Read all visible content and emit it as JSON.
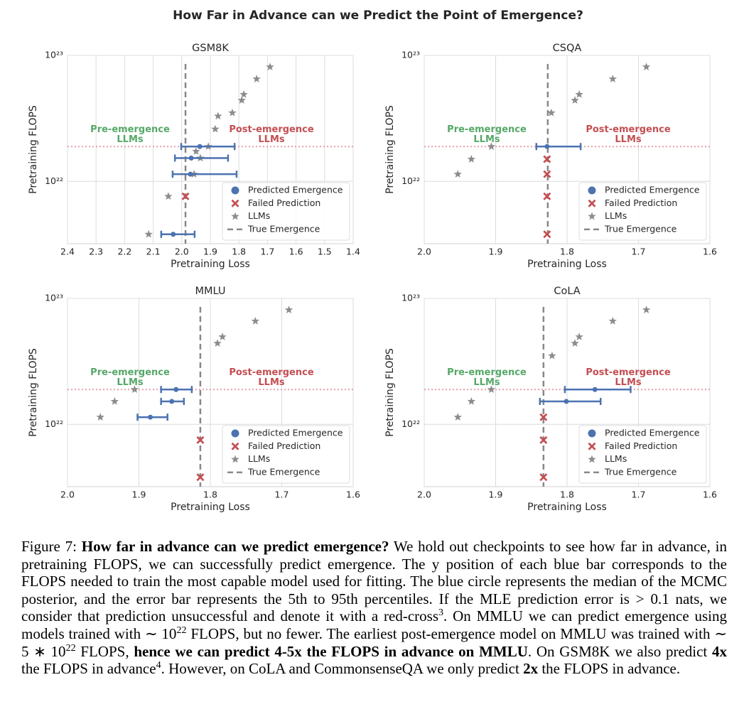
{
  "title": "How Far in Advance can we Predict the Point of Emergence?",
  "chart_data": [
    {
      "type": "scatter",
      "title": "GSM8K",
      "x_label": "Pretraining Loss",
      "y_label": "Pretraining FLOPS",
      "log_y": true,
      "grid": true,
      "xlim": [
        2.4,
        1.4
      ],
      "xticks": [
        2.4,
        2.3,
        2.2,
        2.1,
        {
          "value": 2,
          "label": "2.0"
        },
        1.9,
        1.8,
        1.7,
        1.6,
        1.5,
        1.4
      ],
      "ylim": [
        3.2e+21,
        1e+23
      ],
      "yticks": [
        {
          "value": 1e+22,
          "label": "10²²"
        },
        {
          "value": 1e+23,
          "label": "10²³"
        }
      ],
      "annotations": {
        "pre": [
          "Pre-emergence",
          "LLMs"
        ],
        "post": [
          "Post-emergence",
          "LLMs"
        ]
      },
      "threshold": 1.89e+22,
      "predicted": {
        "name": "Predicted Emergence",
        "color": "#4c72b0",
        "x": [
          2.03,
          1.97,
          1.967,
          1.937
        ],
        "x_low": [
          2.072,
          2.032,
          2.024,
          2.002
        ],
        "x_high": [
          1.955,
          1.808,
          1.838,
          1.815
        ],
        "y": [
          3.8e+21,
          1.14e+22,
          1.53e+22,
          1.89e+22
        ]
      },
      "failed": {
        "name": "Failed Prediction",
        "color": "#c44e52",
        "x": [
          1.987
        ],
        "y": [
          7.6e+21
        ]
      },
      "llms": {
        "name": "LLMs",
        "color": "#8c8c8c",
        "x": [
          2.116,
          2.047,
          1.957,
          1.935,
          1.95,
          1.907,
          1.883,
          1.873,
          1.823,
          1.79,
          1.783,
          1.738,
          1.691
        ],
        "y": [
          3.8e+21,
          7.6e+21,
          1.14e+22,
          1.53e+22,
          1.73e+22,
          1.89e+22,
          2.6e+22,
          3.3e+22,
          3.5e+22,
          4.4e+22,
          4.9e+22,
          6.5e+22,
          8.1e+22
        ]
      },
      "true_emergence": {
        "name": "True Emergence",
        "x": 1.987
      }
    },
    {
      "type": "scatter",
      "title": "CSQA",
      "x_label": "Pretraining Loss",
      "y_label": "Pretraining FLOPS",
      "log_y": true,
      "grid": true,
      "xlim": [
        2.0,
        1.6
      ],
      "xticks": [
        {
          "value": 2,
          "label": "2.0"
        },
        1.9,
        1.8,
        1.7,
        1.6
      ],
      "ylim": [
        3.2e+21,
        1e+23
      ],
      "yticks": [
        {
          "value": 1e+22,
          "label": "10²²"
        },
        {
          "value": 1e+23,
          "label": "10²³"
        }
      ],
      "annotations": {
        "pre": [
          "Pre-emergence",
          "LLMs"
        ],
        "post": [
          "Post-emergence",
          "LLMs"
        ]
      },
      "threshold": 1.89e+22,
      "predicted": {
        "name": "Predicted Emergence",
        "color": "#4c72b0",
        "x": [
          1.828
        ],
        "x_low": [
          1.843
        ],
        "x_high": [
          1.781
        ],
        "y": [
          1.89e+22
        ]
      },
      "failed": {
        "name": "Failed Prediction",
        "color": "#c44e52",
        "x": [
          1.828,
          1.828,
          1.828,
          1.828
        ],
        "y": [
          1.5e+22,
          1.14e+22,
          7.6e+21,
          3.8e+21
        ]
      },
      "llms": {
        "name": "LLMs",
        "color": "#8c8c8c",
        "x": [
          1.953,
          1.934,
          1.906,
          1.822,
          1.789,
          1.783,
          1.736,
          1.689
        ],
        "y": [
          1.14e+22,
          1.5e+22,
          1.89e+22,
          3.5e+22,
          4.4e+22,
          4.9e+22,
          6.5e+22,
          8.1e+22
        ]
      },
      "true_emergence": {
        "name": "True Emergence",
        "x": 1.827
      }
    },
    {
      "type": "scatter",
      "title": "MMLU",
      "x_label": "Pretraining Loss",
      "y_label": "Pretraining FLOPS",
      "log_y": true,
      "grid": true,
      "xlim": [
        2.0,
        1.6
      ],
      "xticks": [
        {
          "value": 2,
          "label": "2.0"
        },
        1.9,
        1.8,
        1.7,
        1.6
      ],
      "ylim": [
        3.2e+21,
        1e+23
      ],
      "yticks": [
        {
          "value": 1e+22,
          "label": "10²²"
        },
        {
          "value": 1e+23,
          "label": "10²³"
        }
      ],
      "annotations": {
        "pre": [
          "Pre-emergence",
          "LLMs"
        ],
        "post": [
          "Post-emergence",
          "LLMs"
        ]
      },
      "threshold": 1.89e+22,
      "predicted": {
        "name": "Predicted Emergence",
        "color": "#4c72b0",
        "x": [
          1.848,
          1.854,
          1.884
        ],
        "x_low": [
          1.869,
          1.869,
          1.902
        ],
        "x_high": [
          1.826,
          1.837,
          1.86
        ],
        "y": [
          1.89e+22,
          1.52e+22,
          1.14e+22
        ]
      },
      "failed": {
        "name": "Failed Prediction",
        "color": "#c44e52",
        "x": [
          1.814,
          1.814
        ],
        "y": [
          7.5e+21,
          3.8e+21
        ]
      },
      "llms": {
        "name": "LLMs",
        "color": "#8c8c8c",
        "x": [
          1.954,
          1.934,
          1.906,
          1.79,
          1.783,
          1.737,
          1.69
        ],
        "y": [
          1.14e+22,
          1.52e+22,
          1.89e+22,
          4.4e+22,
          4.95e+22,
          6.6e+22,
          8.1e+22
        ]
      },
      "true_emergence": {
        "name": "True Emergence",
        "x": 1.814
      }
    },
    {
      "type": "scatter",
      "title": "CoLA",
      "x_label": "Pretraining Loss",
      "y_label": "Pretraining FLOPS",
      "log_y": true,
      "grid": true,
      "xlim": [
        2.0,
        1.6
      ],
      "xticks": [
        {
          "value": 2,
          "label": "2.0"
        },
        1.9,
        1.8,
        1.7,
        1.6
      ],
      "ylim": [
        3.2e+21,
        1e+23
      ],
      "yticks": [
        {
          "value": 1e+22,
          "label": "10²²"
        },
        {
          "value": 1e+23,
          "label": "10²³"
        }
      ],
      "annotations": {
        "pre": [
          "Pre-emergence",
          "LLMs"
        ],
        "post": [
          "Post-emergence",
          "LLMs"
        ]
      },
      "threshold": 1.89e+22,
      "predicted": {
        "name": "Predicted Emergence",
        "color": "#4c72b0",
        "x": [
          1.761,
          1.801
        ],
        "x_low": [
          1.803,
          1.838
        ],
        "x_high": [
          1.711,
          1.753
        ],
        "y": [
          1.89e+22,
          1.52e+22
        ]
      },
      "failed": {
        "name": "Failed Prediction",
        "color": "#c44e52",
        "x": [
          1.833,
          1.833,
          1.833
        ],
        "y": [
          1.14e+22,
          7.5e+21,
          3.8e+21
        ]
      },
      "llms": {
        "name": "LLMs",
        "color": "#8c8c8c",
        "x": [
          1.953,
          1.934,
          1.906,
          1.821,
          1.789,
          1.783,
          1.736,
          1.689
        ],
        "y": [
          1.14e+22,
          1.52e+22,
          1.89e+22,
          3.5e+22,
          4.4e+22,
          4.95e+22,
          6.6e+22,
          8.1e+22
        ]
      },
      "true_emergence": {
        "name": "True Emergence",
        "x": 1.833
      }
    }
  ],
  "caption": {
    "segments": [
      {
        "text": "Figure 7: ",
        "style": "normal"
      },
      {
        "text": "How far in advance can we predict emergence?",
        "style": "bold"
      },
      {
        "text": " We hold out checkpoints to see how far in advance, in pretraining FLOPS, we can successfully predict emergence. The y position of each blue bar corresponds to the FLOPS needed to train the most capable model used for fitting. The blue circle represents the median of the MCMC posterior, and the error bar represents the 5th to 95th percentiles. If the MLE prediction error is > 0.1 nats, we consider that prediction unsuccessful and denote it with a red-cross",
        "style": "normal"
      },
      {
        "text": "3",
        "style": "sup"
      },
      {
        "text": ". On MMLU we can predict emergence using models trained with ∼ 10",
        "style": "normal"
      },
      {
        "text": "22",
        "style": "sup"
      },
      {
        "text": " FLOPS, but no fewer. The earliest post-emergence model on MMLU was trained with ∼ 5 ∗ 10",
        "style": "normal"
      },
      {
        "text": "22",
        "style": "sup"
      },
      {
        "text": " FLOPS, ",
        "style": "normal"
      },
      {
        "text": "hence we can predict 4-5x the FLOPS in advance on MMLU",
        "style": "bold"
      },
      {
        "text": ". On GSM8K we also predict ",
        "style": "normal"
      },
      {
        "text": "4x",
        "style": "bold"
      },
      {
        "text": " the FLOPS in advance",
        "style": "normal"
      },
      {
        "text": "4",
        "style": "sup"
      },
      {
        "text": ". However, on CoLA and CommonsenseQA we only predict ",
        "style": "normal"
      },
      {
        "text": "2x",
        "style": "bold"
      },
      {
        "text": " the FLOPS in advance.",
        "style": "normal"
      }
    ]
  }
}
